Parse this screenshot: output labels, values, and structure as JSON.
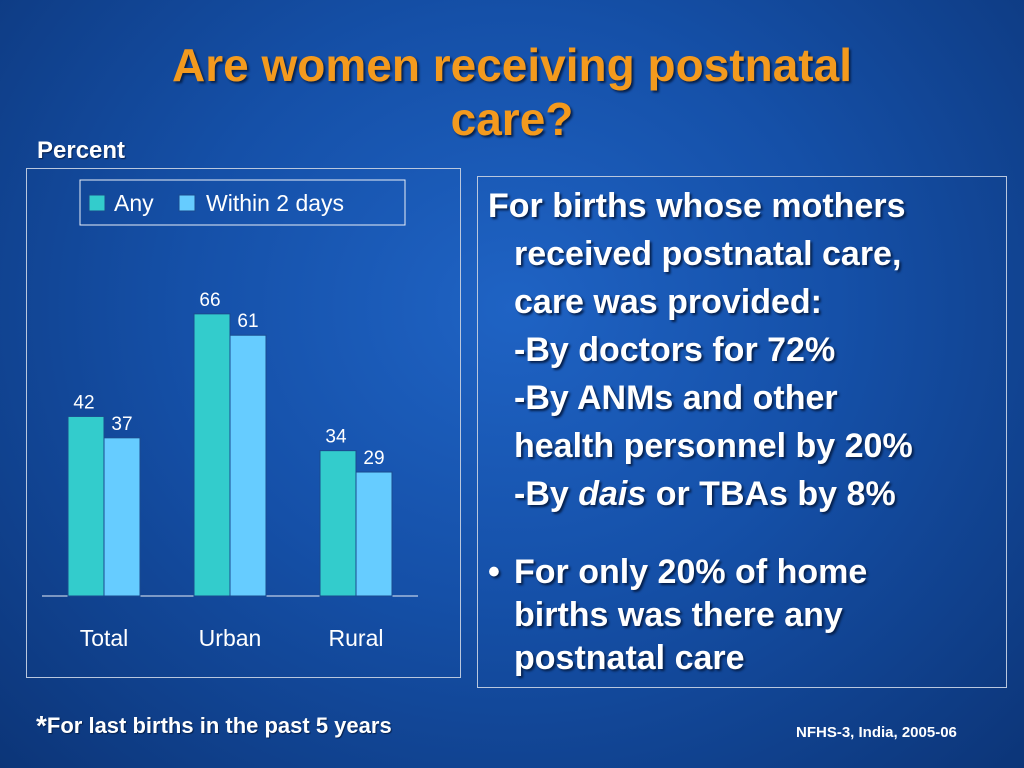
{
  "slide": {
    "title_line1": "Are women receiving postnatal",
    "title_line2": "care?",
    "footnote_star": "*",
    "footnote_text": "For last births in the past 5 years",
    "source": "NFHS-3, India, 2005-06"
  },
  "text_panel": {
    "para_lines": [
      "For births whose mothers",
      "received postnatal care,",
      "care was provided:",
      "-By doctors for 72%",
      "-By ANMs and other",
      "health personnel by 20%"
    ],
    "dais_prefix": "-By ",
    "dais_word": "dais",
    "dais_suffix": " or TBAs by 8%",
    "bullet_symbol": "•",
    "bullet_lines": [
      "For only 20% of home",
      "births was there any",
      "postnatal care"
    ]
  },
  "colors": {
    "any": "#33cccc",
    "within": "#66ccff",
    "title": "#f39a1e"
  },
  "chart_data": {
    "type": "bar",
    "ylabel": "Percent",
    "categories": [
      "Total",
      "Urban",
      "Rural"
    ],
    "series": [
      {
        "name": "Any",
        "values": [
          42,
          66,
          34
        ]
      },
      {
        "name": "Within 2 days",
        "values": [
          37,
          61,
          29
        ]
      }
    ],
    "ylim": [
      0,
      80
    ],
    "legend": "top",
    "grid": false
  }
}
